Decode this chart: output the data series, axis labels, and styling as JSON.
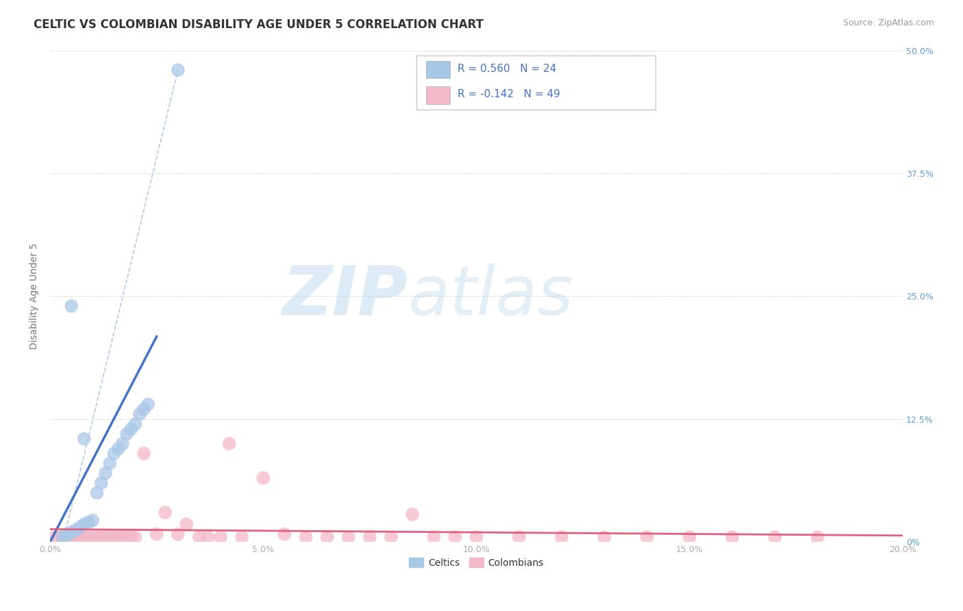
{
  "title": "CELTIC VS COLOMBIAN DISABILITY AGE UNDER 5 CORRELATION CHART",
  "source_text": "Source: ZipAtlas.com",
  "ylabel_label": "Disability Age Under 5",
  "xlim": [
    0.0,
    0.2
  ],
  "ylim": [
    0.0,
    0.5
  ],
  "xticks": [
    0.0,
    0.05,
    0.1,
    0.15,
    0.2
  ],
  "xtick_labels": [
    "0.0%",
    "5.0%",
    "10.0%",
    "15.0%",
    "20.0%"
  ],
  "ytick_labels_right": [
    "0%",
    "12.5%",
    "25.0%",
    "37.5%",
    "50.0%"
  ],
  "celtics_color": "#a8c8e8",
  "colombians_color": "#f4b8c8",
  "celtics_line_color": "#4472c4",
  "colombians_line_color": "#e06080",
  "legend_text_color": "#4472c4",
  "watermark_zip": "ZIP",
  "watermark_atlas": "atlas",
  "background_color": "#ffffff",
  "grid_color": "#dddddd",
  "title_color": "#333333",
  "axis_label_color": "#777777",
  "tick_color": "#aaaaaa",
  "right_tick_color": "#5b9bd5",
  "celtics_x": [
    0.003,
    0.004,
    0.005,
    0.006,
    0.007,
    0.008,
    0.009,
    0.01,
    0.011,
    0.012,
    0.013,
    0.014,
    0.015,
    0.016,
    0.017,
    0.018,
    0.019,
    0.02,
    0.021,
    0.022,
    0.023,
    0.005,
    0.008,
    0.03
  ],
  "celtics_y": [
    0.005,
    0.007,
    0.01,
    0.012,
    0.015,
    0.018,
    0.02,
    0.022,
    0.05,
    0.06,
    0.07,
    0.08,
    0.09,
    0.095,
    0.1,
    0.11,
    0.115,
    0.12,
    0.13,
    0.135,
    0.14,
    0.24,
    0.105,
    0.48
  ],
  "colombians_x": [
    0.001,
    0.002,
    0.003,
    0.004,
    0.005,
    0.006,
    0.007,
    0.008,
    0.009,
    0.01,
    0.011,
    0.012,
    0.013,
    0.014,
    0.015,
    0.016,
    0.017,
    0.018,
    0.019,
    0.02,
    0.025,
    0.03,
    0.035,
    0.04,
    0.045,
    0.05,
    0.06,
    0.065,
    0.07,
    0.08,
    0.09,
    0.1,
    0.11,
    0.12,
    0.13,
    0.14,
    0.15,
    0.16,
    0.17,
    0.18,
    0.022,
    0.027,
    0.032,
    0.037,
    0.042,
    0.055,
    0.075,
    0.085,
    0.095
  ],
  "colombians_y": [
    0.005,
    0.005,
    0.005,
    0.005,
    0.008,
    0.005,
    0.005,
    0.005,
    0.005,
    0.005,
    0.005,
    0.005,
    0.005,
    0.005,
    0.005,
    0.005,
    0.005,
    0.005,
    0.005,
    0.005,
    0.008,
    0.008,
    0.005,
    0.005,
    0.005,
    0.065,
    0.005,
    0.005,
    0.005,
    0.005,
    0.005,
    0.005,
    0.005,
    0.005,
    0.005,
    0.005,
    0.005,
    0.005,
    0.005,
    0.005,
    0.09,
    0.03,
    0.018,
    0.005,
    0.1,
    0.008,
    0.005,
    0.028,
    0.005
  ]
}
